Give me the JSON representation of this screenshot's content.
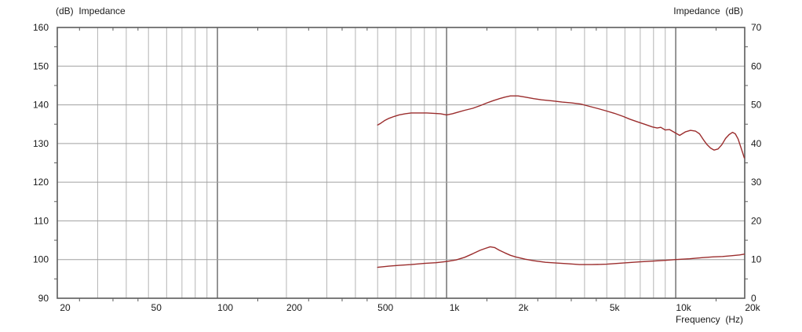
{
  "chart_data": {
    "type": "line",
    "title_left": "(dB)  Impedance",
    "title_right": "Impedance  (dB)",
    "xlabel": "Frequency  (Hz)",
    "x_axis": {
      "scale": "log",
      "min": 20,
      "max": 20000,
      "tick_values": [
        20,
        50,
        100,
        200,
        500,
        1000,
        2000,
        5000,
        10000,
        20000
      ],
      "tick_labels": [
        "20",
        "50",
        "100",
        "200",
        "500",
        "1k",
        "2k",
        "5k",
        "10k",
        "20k"
      ],
      "minor_tick_multiples": [
        1.5,
        2.5,
        3.5,
        4.5
      ]
    },
    "y_left": {
      "label": "(dB)",
      "min": 90,
      "max": 160,
      "step": 10,
      "tick_labels": [
        "160",
        "150",
        "140",
        "130",
        "120",
        "110",
        "100",
        "90"
      ],
      "minor_tick_step": 5
    },
    "y_right": {
      "label": "Impedance (dB)",
      "min": 0,
      "max": 70,
      "step": 10,
      "tick_labels": [
        "70",
        "60",
        "50",
        "40",
        "30",
        "20",
        "10",
        "0"
      ],
      "minor_tick_step": 5
    },
    "grid": {
      "on": true,
      "minor_color": "#b4b4b4",
      "decade_color": "#8a8a8a",
      "hline_color": "#a0a0a0",
      "border_color": "#5c5c5c"
    },
    "legend": "none",
    "series": [
      {
        "name": "response-curve-dB-left-axis",
        "color": "#9b2d2d",
        "axis": "left",
        "points": [
          [
            500,
            134.8
          ],
          [
            515,
            135.2
          ],
          [
            535,
            135.9
          ],
          [
            560,
            136.5
          ],
          [
            590,
            137.0
          ],
          [
            620,
            137.4
          ],
          [
            660,
            137.7
          ],
          [
            700,
            137.9
          ],
          [
            760,
            137.9
          ],
          [
            820,
            137.9
          ],
          [
            880,
            137.8
          ],
          [
            940,
            137.7
          ],
          [
            1000,
            137.4
          ],
          [
            1060,
            137.7
          ],
          [
            1120,
            138.1
          ],
          [
            1200,
            138.6
          ],
          [
            1300,
            139.1
          ],
          [
            1400,
            139.8
          ],
          [
            1500,
            140.5
          ],
          [
            1600,
            141.1
          ],
          [
            1700,
            141.6
          ],
          [
            1800,
            142.0
          ],
          [
            1900,
            142.3
          ],
          [
            2050,
            142.3
          ],
          [
            2200,
            142.0
          ],
          [
            2400,
            141.6
          ],
          [
            2600,
            141.3
          ],
          [
            2900,
            141.0
          ],
          [
            3200,
            140.7
          ],
          [
            3500,
            140.5
          ],
          [
            3850,
            140.2
          ],
          [
            4200,
            139.6
          ],
          [
            4600,
            139.0
          ],
          [
            5000,
            138.4
          ],
          [
            5400,
            137.8
          ],
          [
            5900,
            137.0
          ],
          [
            6300,
            136.3
          ],
          [
            6900,
            135.5
          ],
          [
            7300,
            135.0
          ],
          [
            7900,
            134.3
          ],
          [
            8300,
            134.0
          ],
          [
            8600,
            134.2
          ],
          [
            9000,
            133.5
          ],
          [
            9400,
            133.6
          ],
          [
            9800,
            133.0
          ],
          [
            10400,
            132.1
          ],
          [
            11000,
            133.0
          ],
          [
            11600,
            133.4
          ],
          [
            12200,
            133.2
          ],
          [
            12700,
            132.5
          ],
          [
            13200,
            131.0
          ],
          [
            13700,
            129.7
          ],
          [
            14200,
            128.8
          ],
          [
            14700,
            128.3
          ],
          [
            15300,
            128.6
          ],
          [
            15900,
            129.7
          ],
          [
            16500,
            131.3
          ],
          [
            17100,
            132.3
          ],
          [
            17700,
            132.9
          ],
          [
            18200,
            132.5
          ],
          [
            18700,
            131.2
          ],
          [
            19200,
            129.2
          ],
          [
            19600,
            127.6
          ],
          [
            19900,
            126.3
          ]
        ]
      },
      {
        "name": "impedance-curve-right-axis",
        "color": "#9b2d2d",
        "axis": "right",
        "points": [
          [
            500,
            8.0
          ],
          [
            560,
            8.3
          ],
          [
            620,
            8.5
          ],
          [
            700,
            8.7
          ],
          [
            800,
            9.0
          ],
          [
            900,
            9.2
          ],
          [
            1000,
            9.5
          ],
          [
            1100,
            9.9
          ],
          [
            1200,
            10.6
          ],
          [
            1300,
            11.5
          ],
          [
            1400,
            12.4
          ],
          [
            1480,
            12.9
          ],
          [
            1550,
            13.3
          ],
          [
            1620,
            13.1
          ],
          [
            1700,
            12.4
          ],
          [
            1800,
            11.7
          ],
          [
            1900,
            11.1
          ],
          [
            2000,
            10.7
          ],
          [
            2200,
            10.1
          ],
          [
            2400,
            9.7
          ],
          [
            2700,
            9.3
          ],
          [
            3000,
            9.1
          ],
          [
            3400,
            8.9
          ],
          [
            3800,
            8.7
          ],
          [
            4300,
            8.7
          ],
          [
            5000,
            8.8
          ],
          [
            5900,
            9.1
          ],
          [
            6900,
            9.4
          ],
          [
            7900,
            9.6
          ],
          [
            9000,
            9.8
          ],
          [
            10000,
            10.0
          ],
          [
            11500,
            10.2
          ],
          [
            13000,
            10.5
          ],
          [
            14500,
            10.7
          ],
          [
            16000,
            10.8
          ],
          [
            17500,
            11.0
          ],
          [
            19000,
            11.2
          ],
          [
            19900,
            11.4
          ]
        ]
      }
    ]
  }
}
